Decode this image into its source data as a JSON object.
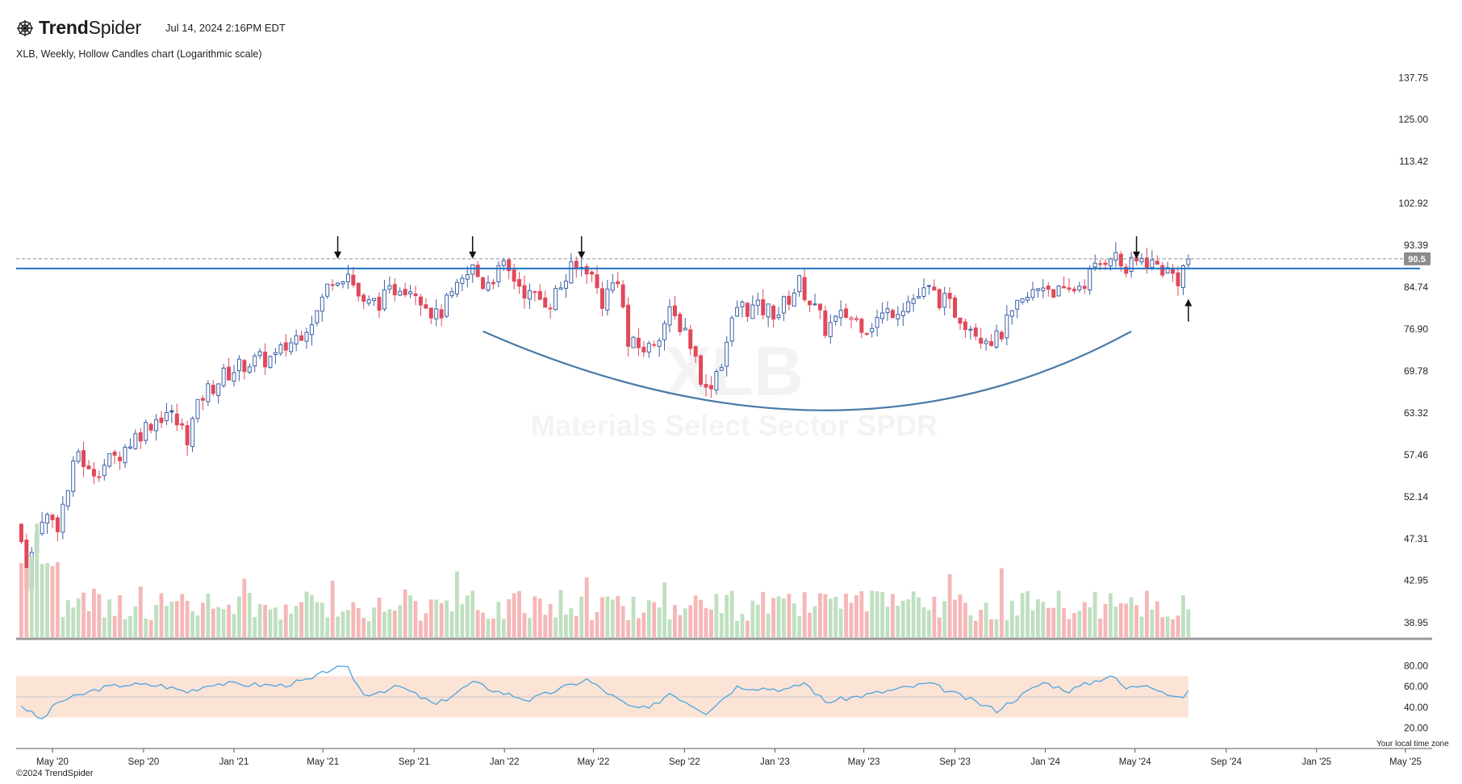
{
  "header": {
    "brand_bold": "Trend",
    "brand_light": "Spider",
    "timestamp": "Jul 14, 2024 2:16PM EDT",
    "subtitle": "XLB, Weekly, Hollow Candles chart (Logarithmic scale)"
  },
  "footer": {
    "copyright": "©2024 TrendSpider",
    "timezone_note": "Your local time zone"
  },
  "watermark": {
    "ticker": "XLB",
    "name": "Materials Select Sector SPDR"
  },
  "colors": {
    "up": "#3b5fa5",
    "down": "#e0495a",
    "vol_up": "#bfe0bf",
    "vol_down": "#f7b6b6",
    "line": "#1f73c4",
    "curve": "#4a7aa8",
    "rsi": "#4ba6e0",
    "rsi_band": "#fbe3d6",
    "price_tag": "#8c8c8c"
  },
  "chart_data": {
    "type": "candlestick",
    "scale": "log",
    "interval": "weekly",
    "y_ticks": [
      "137.75",
      "125.00",
      "113.42",
      "102.92",
      "93.39",
      "84.74",
      "76.90",
      "69.78",
      "63.32",
      "57.46",
      "52.14",
      "47.31",
      "42.95",
      "38.95"
    ],
    "x_ticks": [
      "May '20",
      "Sep '20",
      "Jan '21",
      "May '21",
      "Sep '21",
      "Jan '22",
      "May '22",
      "Sep '22",
      "Jan '23",
      "May '23",
      "Sep '23",
      "Jan '24",
      "May '24",
      "Sep '24",
      "Jan '25",
      "May '25"
    ],
    "ylim": [
      38.0,
      142.0
    ],
    "last_price_label": "90.5",
    "resistance_level": 88.5,
    "dashed_level": 90.5,
    "close_path": [
      [
        "2020-03-20",
        47.0
      ],
      [
        "2020-03-27",
        43.0
      ],
      [
        "2020-04-03",
        45.5
      ],
      [
        "2020-04-17",
        50.0
      ],
      [
        "2020-05-08",
        49.0
      ],
      [
        "2020-05-22",
        53.0
      ],
      [
        "2020-06-05",
        58.0
      ],
      [
        "2020-06-19",
        55.0
      ],
      [
        "2020-07-24",
        57.0
      ],
      [
        "2020-08-21",
        60.0
      ],
      [
        "2020-09-11",
        62.0
      ],
      [
        "2020-10-02",
        63.5
      ],
      [
        "2020-10-30",
        60.0
      ],
      [
        "2020-11-20",
        66.0
      ],
      [
        "2020-12-18",
        69.0
      ],
      [
        "2021-01-15",
        71.0
      ],
      [
        "2021-02-26",
        72.0
      ],
      [
        "2021-03-26",
        75.5
      ],
      [
        "2021-04-23",
        80.0
      ],
      [
        "2021-05-14",
        87.0
      ],
      [
        "2021-06-04",
        87.5
      ],
      [
        "2021-06-25",
        81.0
      ],
      [
        "2021-07-23",
        82.5
      ],
      [
        "2021-08-13",
        85.5
      ],
      [
        "2021-09-03",
        84.5
      ],
      [
        "2021-10-01",
        79.0
      ],
      [
        "2021-10-29",
        84.0
      ],
      [
        "2021-11-19",
        88.5
      ],
      [
        "2021-12-03",
        85.5
      ],
      [
        "2021-12-31",
        88.5
      ],
      [
        "2022-01-14",
        86.5
      ],
      [
        "2022-02-04",
        83.0
      ],
      [
        "2022-03-04",
        82.0
      ],
      [
        "2022-04-01",
        88.0
      ],
      [
        "2022-04-22",
        89.0
      ],
      [
        "2022-05-13",
        82.0
      ],
      [
        "2022-06-03",
        87.0
      ],
      [
        "2022-06-17",
        74.0
      ],
      [
        "2022-07-15",
        73.5
      ],
      [
        "2022-08-12",
        79.5
      ],
      [
        "2022-09-02",
        77.0
      ],
      [
        "2022-09-30",
        66.5
      ],
      [
        "2022-10-21",
        71.5
      ],
      [
        "2022-11-11",
        81.0
      ],
      [
        "2022-12-09",
        80.5
      ],
      [
        "2023-01-06",
        80.0
      ],
      [
        "2023-02-03",
        85.5
      ],
      [
        "2023-03-10",
        77.0
      ],
      [
        "2023-04-07",
        79.5
      ],
      [
        "2023-05-05",
        77.5
      ],
      [
        "2023-06-09",
        80.5
      ],
      [
        "2023-07-28",
        84.0
      ],
      [
        "2023-08-25",
        81.0
      ],
      [
        "2023-10-06",
        76.0
      ],
      [
        "2023-10-27",
        75.0
      ],
      [
        "2023-11-24",
        80.5
      ],
      [
        "2023-12-29",
        85.5
      ],
      [
        "2024-01-26",
        83.0
      ],
      [
        "2024-02-23",
        86.0
      ],
      [
        "2024-03-15",
        89.5
      ],
      [
        "2024-03-29",
        92.0
      ],
      [
        "2024-04-19",
        88.0
      ],
      [
        "2024-05-10",
        90.5
      ],
      [
        "2024-06-07",
        88.5
      ],
      [
        "2024-06-28",
        86.5
      ],
      [
        "2024-07-12",
        90.5
      ]
    ],
    "rsi": {
      "levels": [
        80,
        60,
        40,
        20
      ],
      "band": [
        30,
        70
      ],
      "path": [
        [
          "2020-03-20",
          42
        ],
        [
          "2020-04-03",
          34
        ],
        [
          "2020-04-17",
          28
        ],
        [
          "2020-05-08",
          45
        ],
        [
          "2020-06-05",
          51
        ],
        [
          "2020-07-03",
          58
        ],
        [
          "2020-08-07",
          62
        ],
        [
          "2020-09-25",
          61
        ],
        [
          "2020-10-30",
          55
        ],
        [
          "2020-12-04",
          63
        ],
        [
          "2021-01-22",
          62
        ],
        [
          "2021-03-05",
          61
        ],
        [
          "2021-04-16",
          67
        ],
        [
          "2021-05-14",
          78
        ],
        [
          "2021-06-04",
          77
        ],
        [
          "2021-06-25",
          52
        ],
        [
          "2021-08-13",
          60
        ],
        [
          "2021-10-01",
          42
        ],
        [
          "2021-11-19",
          64
        ],
        [
          "2021-12-24",
          55
        ],
        [
          "2022-02-04",
          47
        ],
        [
          "2022-04-22",
          67
        ],
        [
          "2022-06-17",
          41
        ],
        [
          "2022-07-15",
          38
        ],
        [
          "2022-08-12",
          54
        ],
        [
          "2022-09-30",
          35
        ],
        [
          "2022-11-11",
          60
        ],
        [
          "2023-01-20",
          57
        ],
        [
          "2023-02-10",
          64
        ],
        [
          "2023-03-10",
          45
        ],
        [
          "2023-05-05",
          52
        ],
        [
          "2023-07-28",
          63
        ],
        [
          "2023-10-27",
          37
        ],
        [
          "2023-12-29",
          64
        ],
        [
          "2024-02-02",
          56
        ],
        [
          "2024-03-29",
          71
        ],
        [
          "2024-04-19",
          58
        ],
        [
          "2024-05-17",
          63
        ],
        [
          "2024-06-28",
          48
        ],
        [
          "2024-07-12",
          54
        ]
      ]
    },
    "arrows_down": [
      "2021-05-21",
      "2021-11-19",
      "2022-04-15",
      "2024-05-03"
    ],
    "arrow_up": "2024-07-12",
    "cup_curve": [
      [
        "2021-12-03",
        76.5
      ],
      [
        "2023-03-10",
        63.7
      ],
      [
        "2024-04-26",
        76.5
      ]
    ]
  }
}
